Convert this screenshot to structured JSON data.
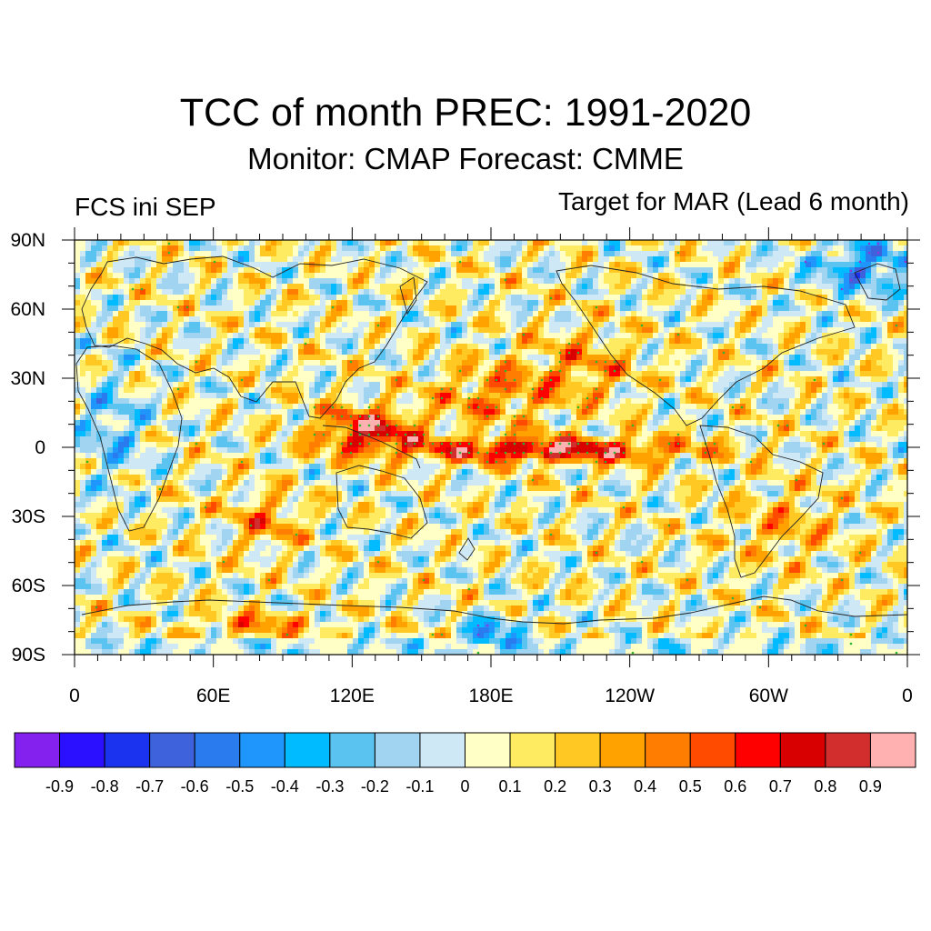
{
  "title": "TCC of month PREC: 1991-2020",
  "subtitle": "Monitor: CMAP   Forecast: CMME",
  "left_label": "FCS ini SEP",
  "right_label": "Target for MAR (Lead 6 month)",
  "lat_labels": [
    "90N",
    "60N",
    "30N",
    "0",
    "30S",
    "60S",
    "90S"
  ],
  "lon_labels": [
    "0",
    "60E",
    "120E",
    "180E",
    "120W",
    "60W",
    "0"
  ],
  "colorbar": {
    "colors": [
      "#8421ee",
      "#2a10ff",
      "#1b33ee",
      "#3e62dc",
      "#2a7cee",
      "#1e96fb",
      "#00bbff",
      "#5bc3f0",
      "#a0d4f0",
      "#cfe8f6",
      "#ffffc6",
      "#ffeb62",
      "#ffc822",
      "#ffa200",
      "#ff7d00",
      "#ff4b00",
      "#ff0000",
      "#d80000",
      "#d22e2e",
      "#ffb1b1"
    ],
    "labels": [
      "-0.9",
      "-0.8",
      "-0.7",
      "-0.6",
      "-0.5",
      "-0.4",
      "-0.3",
      "-0.2",
      "-0.1",
      "0",
      "0.1",
      "0.2",
      "0.3",
      "0.4",
      "0.5",
      "0.6",
      "0.7",
      "0.8",
      "0.9"
    ]
  },
  "stipple_colors": {
    "significant_positive": "#2fb52f",
    "significant_negative": "#8a3ad6"
  }
}
